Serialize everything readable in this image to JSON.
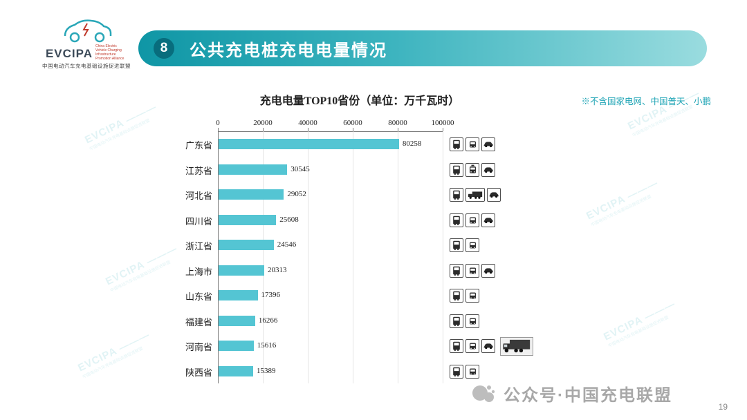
{
  "slide": {
    "badge": "8",
    "title": "公共充电桩充电电量情况",
    "note": "※不含国家电网、中国普天、小鹏",
    "footer_text": "公众号·中国充电联盟",
    "page_number": "19"
  },
  "logo": {
    "name": "EVCIPA",
    "english_small": "China Electric Vehicle Charging Infrastructure Promotion Alliance",
    "chinese": "中国电动汽车充电基础设施促进联盟"
  },
  "watermark": {
    "text": "EVCIPA ———",
    "subtext": "中国电动汽车充电基础设施促进联盟"
  },
  "chart_data": {
    "type": "bar",
    "orientation": "horizontal",
    "title": "充电电量TOP10省份（单位：万千瓦时）",
    "categories": [
      "广东省",
      "江苏省",
      "河北省",
      "四川省",
      "浙江省",
      "上海市",
      "山东省",
      "福建省",
      "河南省",
      "陕西省"
    ],
    "values": [
      80258,
      30545,
      29052,
      25608,
      24546,
      20313,
      17396,
      16266,
      15616,
      15389
    ],
    "xlim": [
      0,
      100000
    ],
    "xticks": [
      0,
      20000,
      40000,
      60000,
      80000,
      100000
    ],
    "bar_color": "#54c5d3",
    "grid": true,
    "legend": "none"
  },
  "vehicle_rows": [
    {
      "icons": [
        "bus",
        "van",
        "car"
      ]
    },
    {
      "icons": [
        "bus",
        "taxi",
        "car"
      ]
    },
    {
      "icons": [
        "bus",
        "truck",
        "car"
      ]
    },
    {
      "icons": [
        "bus",
        "van",
        "car"
      ]
    },
    {
      "icons": [
        "bus",
        "van"
      ]
    },
    {
      "icons": [
        "bus",
        "van",
        "car"
      ]
    },
    {
      "icons": [
        "bus",
        "van"
      ]
    },
    {
      "icons": [
        "bus",
        "van"
      ]
    },
    {
      "icons": [
        "bus",
        "van",
        "car",
        "truck-photo"
      ]
    },
    {
      "icons": [
        "bus",
        "van"
      ]
    }
  ]
}
